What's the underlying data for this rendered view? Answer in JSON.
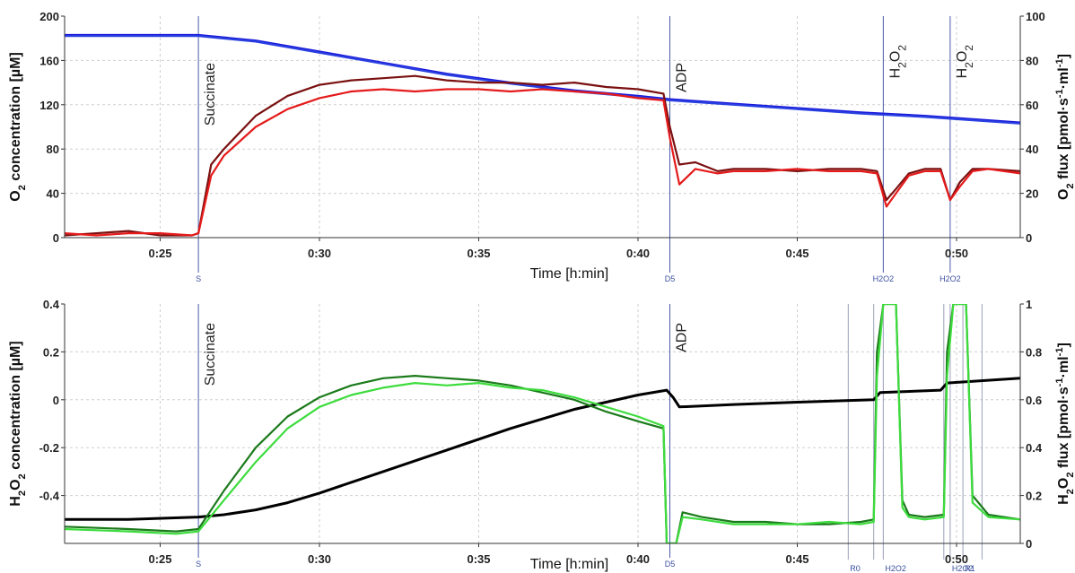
{
  "chart_data": [
    {
      "type": "line",
      "xlabel": "Time [h:min]",
      "ylabel": "O2 concentration [µM]",
      "ylabel_parts": [
        "O",
        "2",
        " concentration [µM]"
      ],
      "y2label": "O2 flux [pmol·s-1·ml-1]",
      "y2label_parts": [
        "O",
        "2",
        " flux [pmol·s",
        "-1",
        "·ml",
        "-1",
        "]"
      ],
      "xlim": [
        22,
        52
      ],
      "ylim": [
        0,
        200
      ],
      "y2lim": [
        0,
        100
      ],
      "x_ticks": [
        25,
        30,
        35,
        40,
        45,
        50
      ],
      "x_tick_labels": [
        "0:25",
        "0:30",
        "0:35",
        "0:40",
        "0:45",
        "0:50"
      ],
      "y_ticks": [
        0,
        40,
        80,
        120,
        160,
        200
      ],
      "y_tick_labels": [
        "0",
        "40",
        "80",
        "120",
        "160",
        "200"
      ],
      "y2_ticks": [
        0,
        20,
        40,
        60,
        80,
        100
      ],
      "y2_tick_labels": [
        "0",
        "20",
        "40",
        "60",
        "80",
        "100"
      ],
      "grid": true,
      "events": [
        {
          "x": 26.2,
          "label": "Succinate",
          "marker": "S"
        },
        {
          "x": 41.0,
          "label": "ADP",
          "marker": "D5"
        },
        {
          "x": 47.7,
          "label": "H2O2",
          "marker": "H2O2"
        },
        {
          "x": 49.8,
          "label": "H2O2",
          "marker": "H2O2"
        }
      ],
      "series": [
        {
          "axis": "left",
          "color": "#1a1adb",
          "x": [
            22,
            26.2,
            28,
            30,
            32,
            34,
            36,
            38,
            40,
            41,
            43,
            45,
            47,
            49,
            50,
            52
          ],
          "values": [
            183,
            183,
            178,
            168,
            158,
            148,
            140,
            133,
            128,
            125,
            121,
            117,
            113,
            110,
            108,
            104
          ]
        },
        {
          "axis": "left",
          "color": "#2a40e0",
          "x": [
            22,
            26.2,
            28,
            30,
            32,
            34,
            36,
            38,
            40,
            41,
            43,
            45,
            47,
            49,
            50,
            52
          ],
          "values": [
            182,
            182,
            177,
            167,
            157,
            147,
            139,
            132,
            127,
            124,
            120,
            116,
            112,
            109,
            107,
            103
          ]
        },
        {
          "axis": "right",
          "color": "#7a1010",
          "x": [
            22,
            23,
            24,
            25,
            26,
            26.2,
            26.6,
            27,
            28,
            29,
            30,
            31,
            32,
            33,
            34,
            35,
            36,
            37,
            38,
            39,
            40,
            40.8,
            41,
            41.3,
            41.8,
            42.5,
            43,
            44,
            45,
            46,
            47,
            47.5,
            47.8,
            48.1,
            48.5,
            49,
            49.5,
            49.8,
            50.1,
            50.5,
            51,
            52
          ],
          "values": [
            1,
            2,
            3,
            1,
            1,
            2,
            33,
            40,
            55,
            64,
            69,
            71,
            72,
            73,
            71,
            70,
            70,
            69,
            70,
            68,
            67,
            65,
            50,
            33,
            34,
            30,
            31,
            31,
            30,
            31,
            31,
            30,
            17,
            22,
            29,
            31,
            31,
            17,
            25,
            31,
            31,
            30
          ]
        },
        {
          "axis": "right",
          "color": "#e51a1a",
          "x": [
            22,
            23,
            24,
            25,
            26,
            26.2,
            26.6,
            27,
            28,
            29,
            30,
            31,
            32,
            33,
            34,
            35,
            36,
            37,
            38,
            39,
            40,
            40.8,
            41,
            41.3,
            41.8,
            42.5,
            43,
            44,
            45,
            46,
            47,
            47.5,
            47.8,
            48.1,
            48.5,
            49,
            49.5,
            49.8,
            50.1,
            50.5,
            51,
            52
          ],
          "values": [
            2,
            1,
            2,
            2,
            1,
            2,
            28,
            37,
            50,
            58,
            63,
            66,
            67,
            66,
            67,
            67,
            66,
            67,
            66,
            65,
            63,
            62,
            45,
            24,
            31,
            29,
            30,
            30,
            31,
            30,
            30,
            29,
            14,
            20,
            28,
            30,
            30,
            17,
            23,
            30,
            31,
            29
          ]
        }
      ]
    },
    {
      "type": "line",
      "xlabel": "Time [h:min]",
      "ylabel": "H2O2 concentration [µM]",
      "ylabel_parts": [
        "H",
        "2",
        "O",
        "2",
        " concentration [µM]"
      ],
      "y2label": "H2O2 flux [pmol·s-1·ml-1]",
      "y2label_parts": [
        "H",
        "2",
        "O",
        "2",
        " flux [pmol·s",
        "-1",
        "·ml",
        "-1",
        "]"
      ],
      "xlim": [
        22,
        52
      ],
      "ylim": [
        -0.6,
        0.4
      ],
      "y2lim": [
        0,
        1
      ],
      "x_ticks": [
        25,
        30,
        35,
        40,
        45,
        50
      ],
      "x_tick_labels": [
        "0:25",
        "0:30",
        "0:35",
        "0:40",
        "0:45",
        "0:50"
      ],
      "y_ticks": [
        -0.4,
        -0.2,
        0,
        0.2,
        0.4
      ],
      "y_tick_labels": [
        "-0.4",
        "-0.2",
        "0",
        "0.2",
        "0.4"
      ],
      "y2_ticks": [
        0,
        0.2,
        0.4,
        0.6,
        0.8,
        1
      ],
      "y2_tick_labels": [
        "0",
        "0.2",
        "0.4",
        "0.6",
        "0.8",
        "1"
      ],
      "grid": true,
      "events": [
        {
          "x": 26.2,
          "label": "Succinate",
          "marker": "S"
        },
        {
          "x": 41.0,
          "label": "ADP",
          "marker": "D5"
        }
      ],
      "marks": [
        {
          "x": 46.6,
          "marker": "R0"
        },
        {
          "x": 47.4,
          "marker": ""
        },
        {
          "x": 47.7,
          "marker": "H2O2"
        },
        {
          "x": 49.6,
          "marker": ""
        },
        {
          "x": 49.8,
          "marker": "H2O2"
        },
        {
          "x": 50.2,
          "marker": "R1"
        },
        {
          "x": 50.8,
          "marker": ""
        }
      ],
      "series": [
        {
          "axis": "left",
          "color": "#000000",
          "width": 3,
          "x": [
            22,
            24,
            26.2,
            27,
            28,
            29,
            30,
            32,
            34,
            36,
            38,
            40,
            40.9,
            41.1,
            41.3,
            43,
            45,
            47.4,
            47.6,
            49.5,
            49.7,
            52
          ],
          "values": [
            -0.5,
            -0.5,
            -0.49,
            -0.48,
            -0.46,
            -0.43,
            -0.39,
            -0.3,
            -0.21,
            -0.12,
            -0.04,
            0.02,
            0.04,
            0.01,
            -0.03,
            -0.02,
            -0.01,
            0.0,
            0.03,
            0.04,
            0.07,
            0.09
          ]
        },
        {
          "axis": "right",
          "color": "#1a7a1a",
          "x": [
            22,
            24,
            25.5,
            26.2,
            27,
            28,
            29,
            30,
            31,
            32,
            33,
            34,
            35,
            36,
            37,
            38,
            39,
            40,
            40.8,
            40.9,
            41.2,
            41.4,
            42,
            43,
            44,
            45,
            46,
            47,
            47.4,
            47.5,
            47.7,
            48.1,
            48.3,
            48.5,
            49,
            49.6,
            49.7,
            49.9,
            50.3,
            50.5,
            51,
            52
          ],
          "values": [
            0.07,
            0.06,
            0.05,
            0.06,
            0.22,
            0.4,
            0.53,
            0.61,
            0.66,
            0.69,
            0.7,
            0.69,
            0.68,
            0.66,
            0.63,
            0.6,
            0.55,
            0.51,
            0.48,
            0.0,
            0.0,
            0.13,
            0.11,
            0.09,
            0.09,
            0.08,
            0.08,
            0.09,
            0.1,
            0.8,
            1.0,
            1.0,
            0.18,
            0.12,
            0.11,
            0.12,
            0.8,
            1.0,
            1.0,
            0.2,
            0.12,
            0.1
          ]
        },
        {
          "axis": "right",
          "color": "#3ddc3d",
          "x": [
            22,
            24,
            25.5,
            26.2,
            27,
            28,
            29,
            30,
            31,
            32,
            33,
            34,
            35,
            36,
            37,
            38,
            39,
            40,
            40.8,
            40.9,
            41.2,
            41.4,
            42,
            43,
            44,
            45,
            46,
            47,
            47.4,
            47.5,
            47.7,
            48.1,
            48.3,
            48.5,
            49,
            49.6,
            49.7,
            49.9,
            50.3,
            50.5,
            51,
            52
          ],
          "values": [
            0.06,
            0.05,
            0.04,
            0.05,
            0.18,
            0.34,
            0.48,
            0.57,
            0.62,
            0.65,
            0.67,
            0.66,
            0.67,
            0.65,
            0.64,
            0.61,
            0.57,
            0.53,
            0.49,
            0.0,
            0.0,
            0.11,
            0.1,
            0.08,
            0.08,
            0.08,
            0.09,
            0.08,
            0.09,
            0.7,
            1.0,
            1.0,
            0.15,
            0.11,
            0.1,
            0.11,
            0.7,
            1.0,
            1.0,
            0.17,
            0.11,
            0.1
          ]
        }
      ]
    }
  ]
}
